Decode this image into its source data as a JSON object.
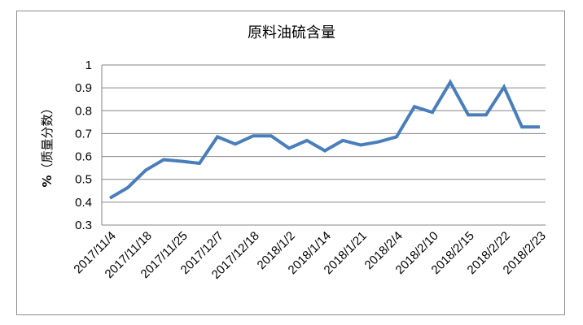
{
  "chart_data": {
    "type": "line",
    "title": "原料油硫含量",
    "ylabel_bold": "%",
    "ylabel": "（质量分数）",
    "xlabel": "",
    "ylim": [
      0.3,
      1
    ],
    "yticks": [
      "0.3",
      "0.4",
      "0.5",
      "0.6",
      "0.7",
      "0.8",
      "0.9",
      "1"
    ],
    "grid": true,
    "legend": "none",
    "color": "#4a7ebb",
    "categories": [
      "2017/11/4",
      "",
      "2017/11/18",
      "",
      "2017/11/25",
      "",
      "2017/12/7",
      "",
      "2017/12/18",
      "",
      "2018/1/2",
      "",
      "2018/1/14",
      "",
      "2018/1/21",
      "",
      "2018/2/4",
      "",
      "2018/2/10",
      "",
      "2018/2/15",
      "",
      "2018/2/22",
      "",
      "2018/2/23"
    ],
    "values": [
      0.418,
      0.464,
      0.54,
      0.586,
      0.579,
      0.57,
      0.686,
      0.654,
      0.69,
      0.69,
      0.636,
      0.67,
      0.625,
      0.67,
      0.65,
      0.664,
      0.686,
      0.818,
      0.793,
      0.925,
      0.782,
      0.782,
      0.904,
      0.729,
      0.729
    ]
  }
}
